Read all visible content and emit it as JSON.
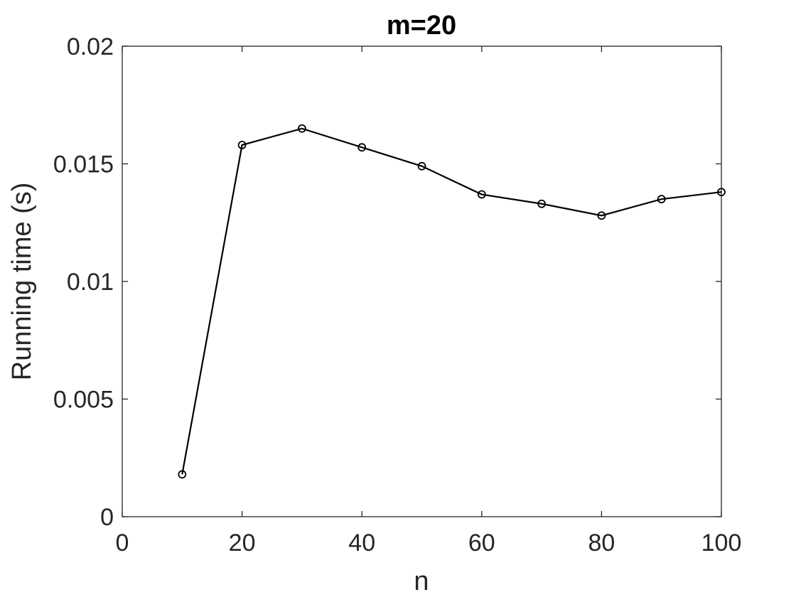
{
  "chart_data": {
    "type": "line",
    "title": "m=20",
    "xlabel": "n",
    "ylabel": "Running time (s)",
    "xlim": [
      0,
      100
    ],
    "ylim": [
      0,
      0.02
    ],
    "xticks": [
      0,
      20,
      40,
      60,
      80,
      100
    ],
    "xtick_labels": [
      "0",
      "20",
      "40",
      "60",
      "80",
      "100"
    ],
    "yticks": [
      0,
      0.005,
      0.01,
      0.015,
      0.02
    ],
    "ytick_labels": [
      "0",
      "0.005",
      "0.01",
      "0.015",
      "0.02"
    ],
    "grid": false,
    "legend": "none",
    "series": [
      {
        "color": "#000000",
        "marker": "circle",
        "x": [
          10,
          20,
          30,
          40,
          50,
          60,
          70,
          80,
          90,
          100
        ],
        "y": [
          0.0018,
          0.0158,
          0.0165,
          0.0157,
          0.0149,
          0.0137,
          0.0133,
          0.0128,
          0.0135,
          0.0138
        ]
      }
    ]
  }
}
